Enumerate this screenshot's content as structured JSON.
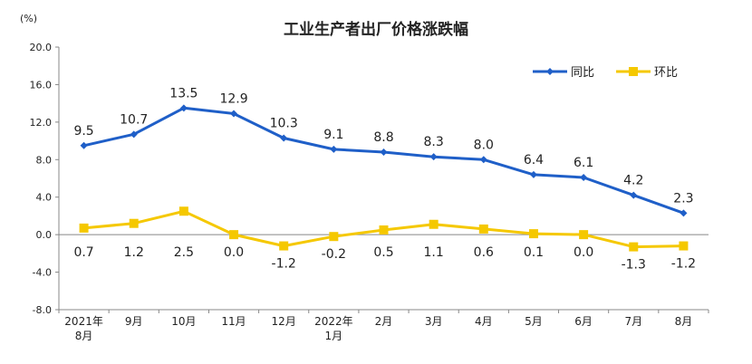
{
  "chart_data": {
    "type": "line",
    "title": "工业生产者出厂价格涨跌幅",
    "unit_label": "(%)",
    "categories": [
      [
        "2021年",
        "8月"
      ],
      [
        "9月"
      ],
      [
        "10月"
      ],
      [
        "11月"
      ],
      [
        "12月"
      ],
      [
        "2022年",
        "1月"
      ],
      [
        "2月"
      ],
      [
        "3月"
      ],
      [
        "4月"
      ],
      [
        "5月"
      ],
      [
        "6月"
      ],
      [
        "7月"
      ],
      [
        "8月"
      ]
    ],
    "ylim": [
      -8.0,
      20.0
    ],
    "yticks": [
      "20.0",
      "16.0",
      "12.0",
      "8.0",
      "4.0",
      "0.0",
      "-4.0",
      "-8.0"
    ],
    "ytick_values": [
      20,
      16,
      12,
      8,
      4,
      0,
      -4,
      -8
    ],
    "grid": false,
    "legend_position": "top-right",
    "series": [
      {
        "name": "同比",
        "color": "#1f5fc8",
        "marker": "diamond",
        "values": [
          9.5,
          10.7,
          13.5,
          12.9,
          10.3,
          9.1,
          8.8,
          8.3,
          8.0,
          6.4,
          6.1,
          4.2,
          2.3
        ],
        "labels": [
          "9.5",
          "10.7",
          "13.5",
          "12.9",
          "10.3",
          "9.1",
          "8.8",
          "8.3",
          "8.0",
          "6.4",
          "6.1",
          "4.2",
          "2.3"
        ]
      },
      {
        "name": "环比",
        "color": "#f5c800",
        "marker": "square",
        "values": [
          0.7,
          1.2,
          2.5,
          0.0,
          -1.2,
          -0.2,
          0.5,
          1.1,
          0.6,
          0.1,
          0.0,
          -1.3,
          -1.2
        ],
        "labels": [
          "0.7",
          "1.2",
          "2.5",
          "0.0",
          "-1.2",
          "-0.2",
          "0.5",
          "1.1",
          "0.6",
          "0.1",
          "0.0",
          "-1.3",
          "-1.2"
        ]
      }
    ]
  }
}
